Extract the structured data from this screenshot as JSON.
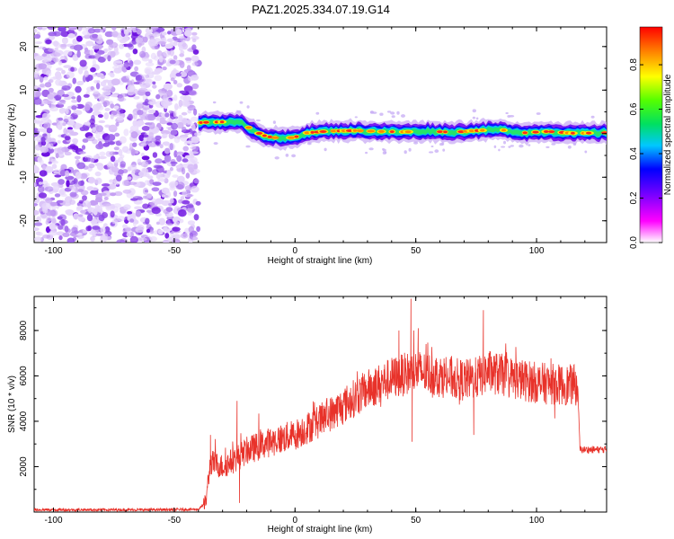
{
  "title": "PAZ1.2025.334.07.19.G14",
  "colors": {
    "snr_line": "#e8322a",
    "axis": "#000000",
    "noise": "#8a2be2"
  },
  "colorbar": {
    "label": "Normalized spectral amplitude",
    "ticks": [
      "0.0",
      "0.2",
      "0.4",
      "0.6",
      "0.8"
    ],
    "tick_values": [
      0.0,
      0.2,
      0.4,
      0.6,
      0.8
    ],
    "range": [
      0,
      0.97
    ]
  },
  "chart_data": [
    {
      "type": "heatmap",
      "title": "PAZ1.2025.334.07.19.G14",
      "xlabel": "Height of straight line (km)",
      "ylabel": "Frequency (Hz)",
      "xlim": [
        -108,
        129
      ],
      "ylim": [
        -25,
        24.5
      ],
      "xticks": [
        -100,
        -50,
        0,
        50,
        100
      ],
      "xtick_labels": [
        "-100",
        "-50",
        "0",
        "50",
        "100"
      ],
      "yticks": [
        -20,
        -10,
        0,
        10,
        20
      ],
      "ytick_labels": [
        "-20",
        "-10",
        "0",
        "10",
        "20"
      ],
      "noise_region_x": [
        -108,
        -40
      ],
      "signal_track": {
        "x": [
          -40,
          -37,
          -30,
          -22,
          -17,
          -12,
          -5,
          0,
          5,
          15,
          25,
          35,
          45,
          55,
          65,
          75,
          85,
          95,
          105,
          115,
          129
        ],
        "freq": [
          2.5,
          2.6,
          2.7,
          2.4,
          0.6,
          -0.6,
          -1.2,
          -0.8,
          0.2,
          0.6,
          0.7,
          0.5,
          0.4,
          0.6,
          0.3,
          0.7,
          0.9,
          0.2,
          0.5,
          0.1,
          0.2
        ]
      }
    },
    {
      "type": "line",
      "xlabel": "Height of straight line (km)",
      "ylabel": "SNR (10 * v/v)",
      "xlim": [
        -108,
        129
      ],
      "ylim": [
        0,
        9500
      ],
      "xticks": [
        -100,
        -50,
        0,
        50,
        100
      ],
      "xtick_labels": [
        "-100",
        "-50",
        "0",
        "50",
        "100"
      ],
      "yticks": [
        2000,
        4000,
        6000,
        8000
      ],
      "ytick_labels": [
        "2000",
        "4000",
        "6000",
        "8000"
      ],
      "trend": {
        "x": [
          -108,
          -60,
          -40,
          -37,
          -35,
          -30,
          -25,
          -20,
          -10,
          0,
          10,
          20,
          30,
          40,
          50,
          60,
          70,
          75,
          80,
          90,
          100,
          110,
          117,
          118,
          129
        ],
        "y": [
          100,
          100,
          120,
          400,
          2200,
          2000,
          2300,
          2700,
          3100,
          3400,
          4000,
          4700,
          5400,
          5900,
          6200,
          6000,
          5800,
          5900,
          6200,
          5900,
          5700,
          5600,
          5600,
          2750,
          2750
        ]
      },
      "spikes": [
        {
          "x": -24,
          "y": 4900
        },
        {
          "x": -23,
          "y": 400
        },
        {
          "x": -35,
          "y": 3400
        },
        {
          "x": 48,
          "y": 9400
        },
        {
          "x": 48.5,
          "y": 3100
        },
        {
          "x": 51,
          "y": 8100
        },
        {
          "x": 74,
          "y": 3400
        },
        {
          "x": 78,
          "y": 8900
        },
        {
          "x": 43,
          "y": 8000
        }
      ]
    }
  ]
}
